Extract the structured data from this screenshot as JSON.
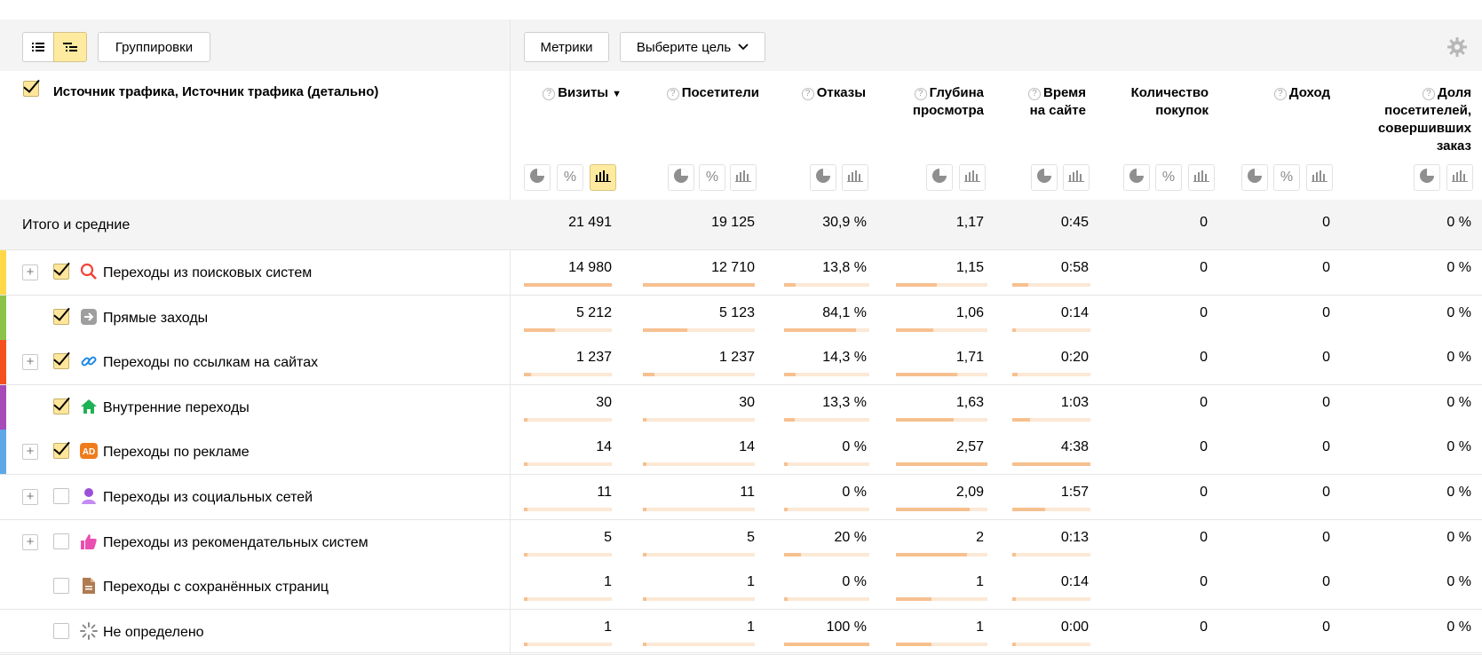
{
  "toolbar": {
    "list_view_icon": "list-view-icon",
    "tree_view_icon": "tree-view-icon",
    "groupings_label": "Группировки",
    "metrics_label": "Метрики",
    "goal_label": "Выберите цель",
    "settings_icon": "gear-icon"
  },
  "header": {
    "dimension_title": "Источник трафика, Источник трафика (детально)",
    "columns": [
      {
        "line1": "Визиты",
        "line2": "",
        "line3": "",
        "line4": "",
        "help": "?",
        "sorted": "▼"
      },
      {
        "line1": "Посетители",
        "line2": "",
        "line3": "",
        "line4": "",
        "help": "?"
      },
      {
        "line1": "Отказы",
        "line2": "",
        "line3": "",
        "line4": "",
        "help": "?"
      },
      {
        "line1": "Глубина",
        "line2": "просмотра",
        "line3": "",
        "line4": "",
        "help": "?"
      },
      {
        "line1": "Время",
        "line2": "на сайте",
        "line3": "",
        "line4": "",
        "help": "?"
      },
      {
        "line1": "Количество",
        "line2": "покупок",
        "line3": "",
        "line4": "",
        "help": ""
      },
      {
        "line1": "Доход",
        "line2": "",
        "line3": "",
        "line4": "",
        "help": "?"
      },
      {
        "line1": "Доля",
        "line2": "посетителей,",
        "line3": "совершивших",
        "line4": "заказ",
        "help": "?"
      }
    ],
    "view_buttons": {
      "pie": "◔",
      "percent": "%",
      "bars": "▮"
    }
  },
  "totals": {
    "label": "Итого и средние",
    "values": [
      "21 491",
      "19 125",
      "30,9 %",
      "1,17",
      "0:45",
      "0",
      "0",
      "0 %"
    ]
  },
  "rows": [
    {
      "label": "Переходы из поисковых систем",
      "icon": "search-icon",
      "stripe": "#ffd84a",
      "expand": "+",
      "checked": true,
      "values": [
        "14 980",
        "12 710",
        "13,8 %",
        "1,15",
        "0:58",
        "0",
        "0",
        "0 %"
      ],
      "bars": [
        1.0,
        1.0,
        0.14,
        0.45,
        0.21
      ]
    },
    {
      "label": "Прямые заходы",
      "icon": "arrow-right-icon",
      "stripe": "#8bc34a",
      "expand": "",
      "checked": true,
      "values": [
        "5 212",
        "5 123",
        "84,1 %",
        "1,06",
        "0:14",
        "0",
        "0",
        "0 %"
      ],
      "bars": [
        0.35,
        0.4,
        0.84,
        0.41,
        0.05
      ]
    },
    {
      "label": "Переходы по ссылкам на сайтах",
      "icon": "link-icon",
      "stripe": "#f4511e",
      "expand": "+",
      "checked": true,
      "values": [
        "1 237",
        "1 237",
        "14,3 %",
        "1,71",
        "0:20",
        "0",
        "0",
        "0 %"
      ],
      "bars": [
        0.08,
        0.1,
        0.14,
        0.67,
        0.07
      ]
    },
    {
      "label": "Внутренние переходы",
      "icon": "home-icon",
      "stripe": "#a74bb8",
      "expand": "",
      "checked": true,
      "values": [
        "30",
        "30",
        "13,3 %",
        "1,63",
        "1:03",
        "0",
        "0",
        "0 %"
      ],
      "bars": [
        0.0,
        0.0,
        0.13,
        0.63,
        0.23
      ]
    },
    {
      "label": "Переходы по рекламе",
      "icon": "ad-icon",
      "stripe": "#5fa7e6",
      "expand": "+",
      "checked": true,
      "values": [
        "14",
        "14",
        "0 %",
        "2,57",
        "4:38",
        "0",
        "0",
        "0 %"
      ],
      "bars": [
        0.0,
        0.0,
        0.0,
        1.0,
        1.0
      ]
    },
    {
      "label": "Переходы из социальных сетей",
      "icon": "social-icon",
      "stripe": "",
      "expand": "+",
      "checked": false,
      "values": [
        "11",
        "11",
        "0 %",
        "2,09",
        "1:57",
        "0",
        "0",
        "0 %"
      ],
      "bars": [
        0.0,
        0.0,
        0.0,
        0.81,
        0.42
      ]
    },
    {
      "label": "Переходы из рекомендательных систем",
      "icon": "thumbs-up-icon",
      "stripe": "",
      "expand": "+",
      "checked": false,
      "values": [
        "5",
        "5",
        "20 %",
        "2",
        "0:13",
        "0",
        "0",
        "0 %"
      ],
      "bars": [
        0.0,
        0.0,
        0.2,
        0.78,
        0.05
      ]
    },
    {
      "label": "Переходы с сохранённых страниц",
      "icon": "document-icon",
      "stripe": "",
      "expand": "",
      "checked": false,
      "values": [
        "1",
        "1",
        "0 %",
        "1",
        "0:14",
        "0",
        "0",
        "0 %"
      ],
      "bars": [
        0.0,
        0.0,
        0.0,
        0.39,
        0.05
      ]
    },
    {
      "label": "Не определено",
      "icon": "spinner-icon",
      "stripe": "",
      "expand": "",
      "checked": false,
      "values": [
        "1",
        "1",
        "100 %",
        "1",
        "0:00",
        "0",
        "0",
        "0 %"
      ],
      "bars": [
        0.0,
        0.0,
        1.0,
        0.39,
        0.0
      ]
    }
  ]
}
